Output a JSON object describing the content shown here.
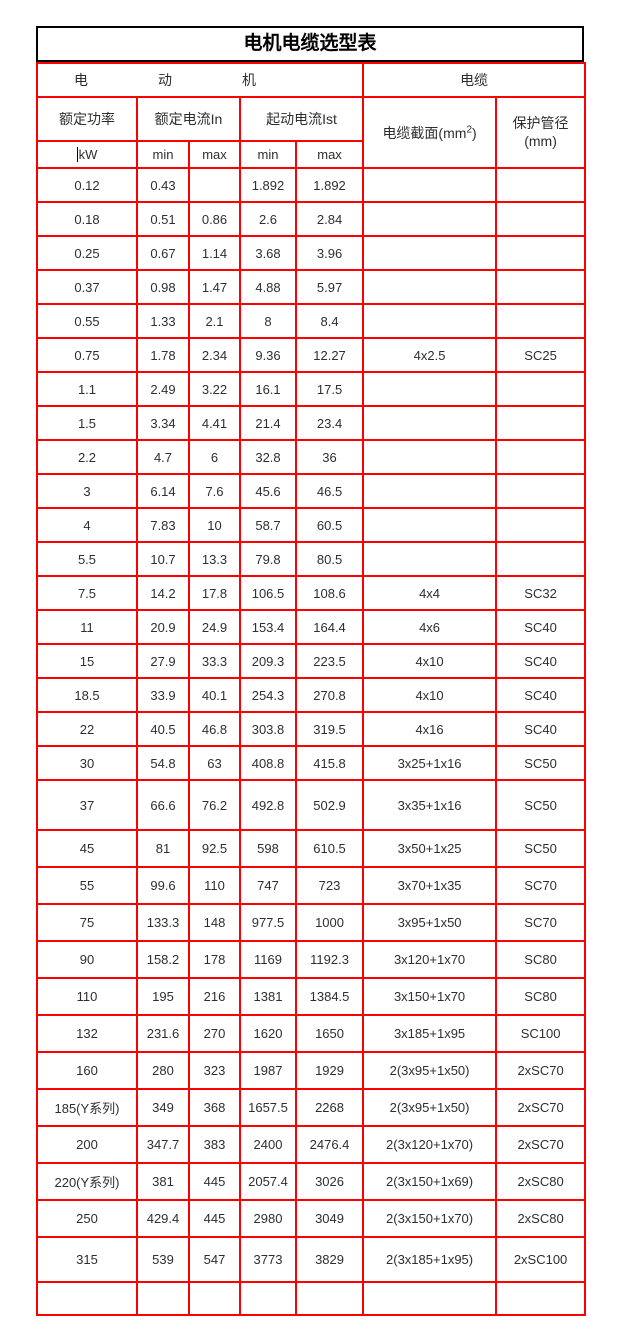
{
  "page_title": "电机电缆选型表",
  "colors": {
    "grid_red": "#ff0000",
    "title_border": "#000000",
    "text": "#2e2e2e",
    "background": "#ffffff"
  },
  "header": {
    "motor_group": "电动机",
    "cable_group": "电缆",
    "rated_power": "额定功率",
    "rated_current": "额定电流In",
    "starting_current": "起动电流Ist",
    "cable_section_prefix": "电缆截面(mm",
    "cable_section_sup": "2",
    "cable_section_suffix": ")",
    "conduit_line1": "保护管径",
    "conduit_line2": "(mm)",
    "power_unit": "kW",
    "min_label": "min",
    "max_label": "max"
  },
  "table": {
    "rows": [
      [
        "0.12",
        "0.43",
        "",
        "1.892",
        "1.892",
        "",
        ""
      ],
      [
        "0.18",
        "0.51",
        "0.86",
        "2.6",
        "2.84",
        "",
        ""
      ],
      [
        "0.25",
        "0.67",
        "1.14",
        "3.68",
        "3.96",
        "",
        ""
      ],
      [
        "0.37",
        "0.98",
        "1.47",
        "4.88",
        "5.97",
        "",
        ""
      ],
      [
        "0.55",
        "1.33",
        "2.1",
        "8",
        "8.4",
        "",
        ""
      ],
      [
        "0.75",
        "1.78",
        "2.34",
        "9.36",
        "12.27",
        "4x2.5",
        "SC25"
      ],
      [
        "1.1",
        "2.49",
        "3.22",
        "16.1",
        "17.5",
        "",
        ""
      ],
      [
        "1.5",
        "3.34",
        "4.41",
        "21.4",
        "23.4",
        "",
        ""
      ],
      [
        "2.2",
        "4.7",
        "6",
        "32.8",
        "36",
        "",
        ""
      ],
      [
        "3",
        "6.14",
        "7.6",
        "45.6",
        "46.5",
        "",
        ""
      ],
      [
        "4",
        "7.83",
        "10",
        "58.7",
        "60.5",
        "",
        ""
      ],
      [
        "5.5",
        "10.7",
        "13.3",
        "79.8",
        "80.5",
        "",
        ""
      ],
      [
        "7.5",
        "14.2",
        "17.8",
        "106.5",
        "108.6",
        "4x4",
        "SC32"
      ],
      [
        "11",
        "20.9",
        "24.9",
        "153.4",
        "164.4",
        "4x6",
        "SC40"
      ],
      [
        "15",
        "27.9",
        "33.3",
        "209.3",
        "223.5",
        "4x10",
        "SC40"
      ],
      [
        "18.5",
        "33.9",
        "40.1",
        "254.3",
        "270.8",
        "4x10",
        "SC40"
      ],
      [
        "22",
        "40.5",
        "46.8",
        "303.8",
        "319.5",
        "4x16",
        "SC40"
      ],
      [
        "30",
        "54.8",
        "63",
        "408.8",
        "415.8",
        "3x25+1x16",
        "SC50"
      ],
      [
        "37",
        "66.6",
        "76.2",
        "492.8",
        "502.9",
        "3x35+1x16",
        "SC50"
      ],
      [
        "45",
        "81",
        "92.5",
        "598",
        "610.5",
        "3x50+1x25",
        "SC50"
      ],
      [
        "55",
        "99.6",
        "110",
        "747",
        "723",
        "3x70+1x35",
        "SC70"
      ],
      [
        "75",
        "133.3",
        "148",
        "977.5",
        "1000",
        "3x95+1x50",
        "SC70"
      ],
      [
        "90",
        "158.2",
        "178",
        "1169",
        "1192.3",
        "3x120+1x70",
        "SC80"
      ],
      [
        "110",
        "195",
        "216",
        "1381",
        "1384.5",
        "3x150+1x70",
        "SC80"
      ],
      [
        "132",
        "231.6",
        "270",
        "1620",
        "1650",
        "3x185+1x95",
        "SC100"
      ],
      [
        "160",
        "280",
        "323",
        "1987",
        "1929",
        "2(3x95+1x50)",
        "2xSC70"
      ],
      [
        "185(Y系列)",
        "349",
        "368",
        "1657.5",
        "2268",
        "2(3x95+1x50)",
        "2xSC70"
      ],
      [
        "200",
        "347.7",
        "383",
        "2400",
        "2476.4",
        "2(3x120+1x70)",
        "2xSC70"
      ],
      [
        "220(Y系列)",
        "381",
        "445",
        "2057.4",
        "3026",
        "2(3x150+1x69)",
        "2xSC80"
      ],
      [
        "250",
        "429.4",
        "445",
        "2980",
        "3049",
        "2(3x150+1x70)",
        "2xSC80"
      ],
      [
        "315",
        "539",
        "547",
        "3773",
        "3829",
        "2(3x185+1x95)",
        "2xSC100"
      ],
      [
        "",
        "",
        "",
        "",
        "",
        "",
        ""
      ]
    ]
  }
}
